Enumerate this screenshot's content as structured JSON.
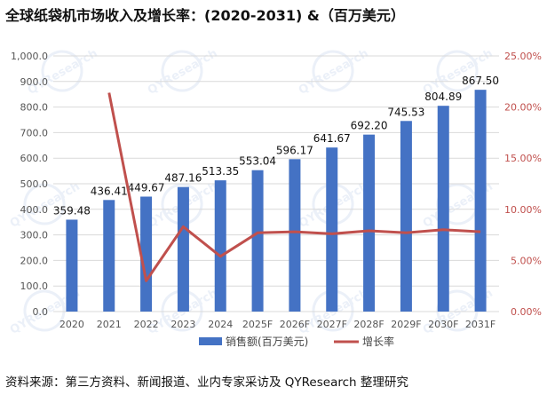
{
  "title": "全球纸袋机市场收入及增长率：(2020-2031) &（百万美元）",
  "source": "资料来源：第三方资料、新闻报道、业内专家采访及 QYResearch 整理研究",
  "watermark": "QYResearch",
  "colors": {
    "bar": "#4472c4",
    "line": "#c0504d",
    "left_axis_text": "#555555",
    "right_axis_text": "#c0504d",
    "grid": "#d9d9d9"
  },
  "chart_data": {
    "type": "bar",
    "categories": [
      "2020",
      "2021",
      "2022",
      "2023",
      "2024",
      "2025F",
      "2026F",
      "2027F",
      "2028F",
      "2029F",
      "2030F",
      "2031F"
    ],
    "y_ticks": [
      "0.0",
      "100.0",
      "200.0",
      "300.0",
      "400.0",
      "500.0",
      "600.0",
      "700.0",
      "800.0",
      "900.0",
      "1,000.0"
    ],
    "y2_ticks": [
      "0.00%",
      "5.00%",
      "10.00%",
      "15.00%",
      "20.00%",
      "25.00%"
    ],
    "ylim": [
      0,
      1000
    ],
    "y2lim": [
      0,
      25
    ],
    "grid": true,
    "legend": "bottom",
    "series": [
      {
        "name": "销售额(百万美元)",
        "type": "bar",
        "axis": "left",
        "values": [
          359.48,
          436.41,
          449.67,
          487.16,
          513.35,
          553.04,
          596.17,
          641.67,
          692.2,
          745.53,
          804.89,
          867.5
        ],
        "labels": [
          "359.48",
          "436.41",
          "449.67",
          "487.16",
          "513.35",
          "553.04",
          "596.17",
          "641.67",
          "692.20",
          "745.53",
          "804.89",
          "867.50"
        ]
      },
      {
        "name": "增长率",
        "type": "line",
        "axis": "right",
        "values": [
          null,
          21.4,
          3.0,
          8.3,
          5.4,
          7.7,
          7.8,
          7.6,
          7.9,
          7.7,
          8.0,
          7.8
        ]
      }
    ]
  }
}
